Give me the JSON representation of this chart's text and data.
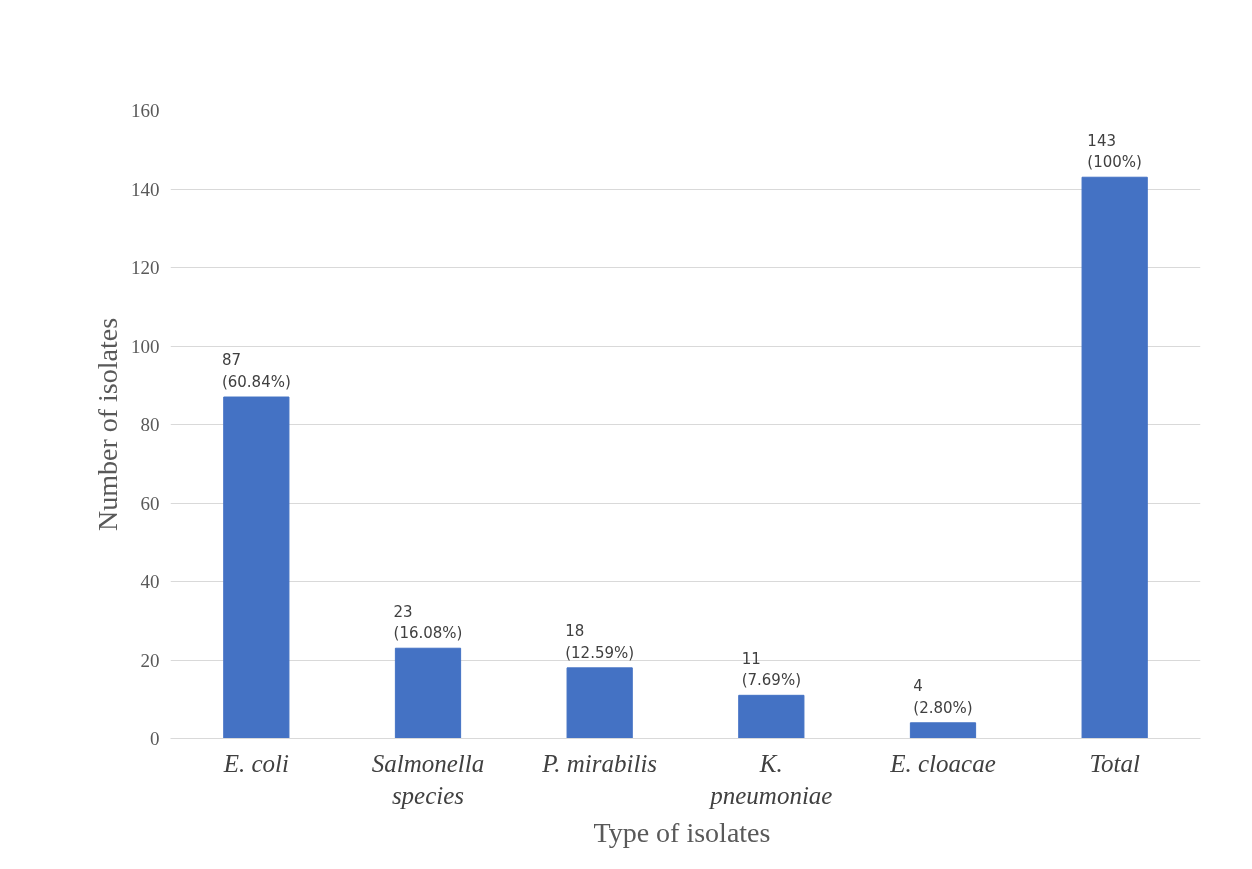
{
  "chart_data": {
    "type": "bar",
    "xlabel": "Type  of isolates",
    "ylabel": "Number of isolates",
    "categories": [
      "E. coli",
      "Salmonella species",
      "P. mirabilis",
      "K. pneumoniae",
      "E. cloacae",
      "Total"
    ],
    "values": [
      87,
      23,
      18,
      11,
      4,
      143
    ],
    "color": "#4472c4",
    "value_labels": [
      "87\n(60.84%)",
      "23\n(16.08%)",
      "18\n(12.59%)",
      "11\n(7.69%)",
      "4\n(2.80%)",
      "143\n(100%)"
    ],
    "ylim": [
      0,
      160
    ],
    "yticks": [
      0,
      20,
      40,
      60,
      80,
      100,
      120,
      140,
      160
    ],
    "grid": "y"
  }
}
